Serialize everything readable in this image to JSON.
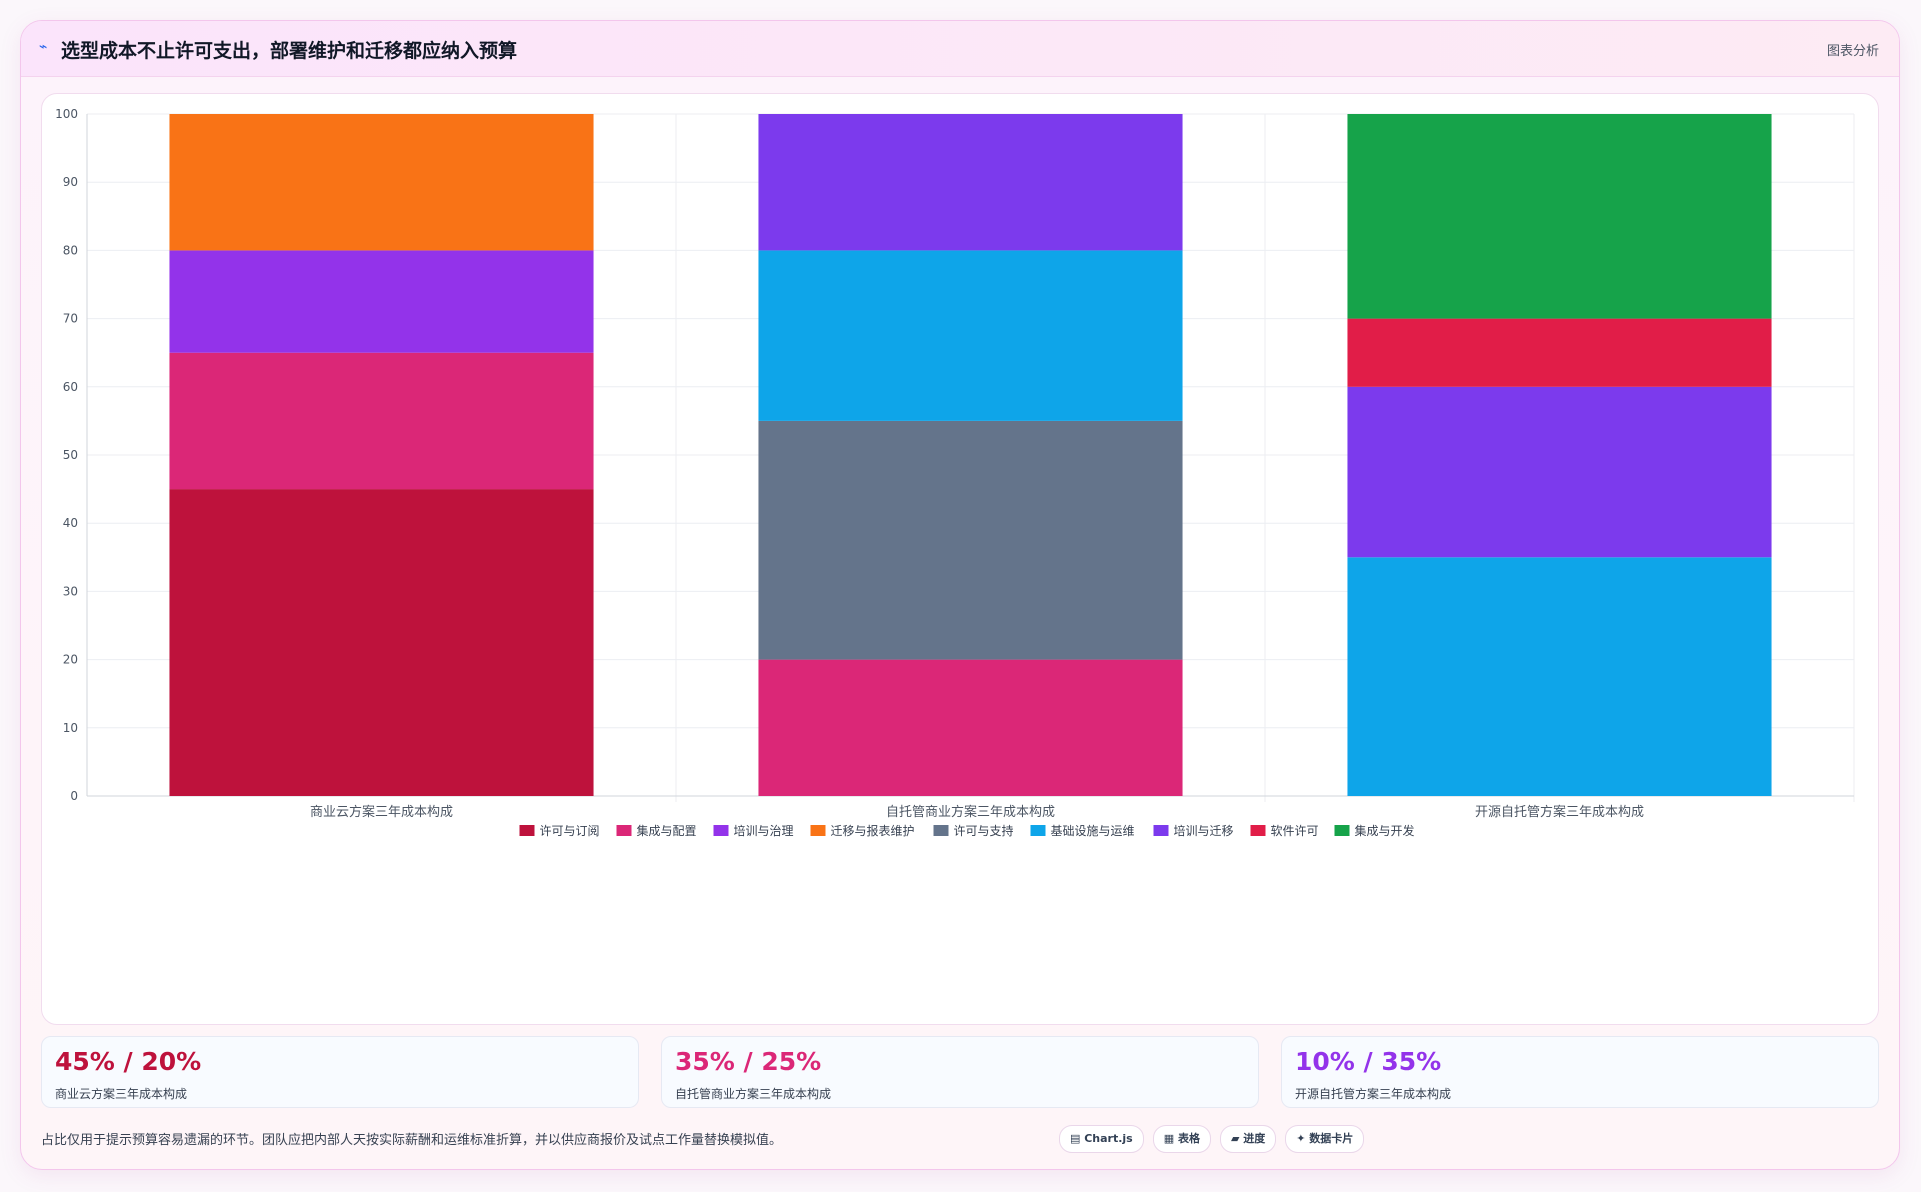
{
  "header": {
    "icon": "chart-line-icon",
    "icon_glyph": "⌁",
    "title": "选型成本不止许可支出，部署维护和迁移都应纳入预算",
    "link": "图表分析"
  },
  "chart_data": {
    "type": "bar",
    "stacked": true,
    "categories": [
      "商业云方案三年成本构成",
      "自托管商业方案三年成本构成",
      "开源自托管方案三年成本构成"
    ],
    "ylim": [
      0,
      100
    ],
    "yticks": [
      0,
      10,
      20,
      30,
      40,
      50,
      60,
      70,
      80,
      90,
      100
    ],
    "grid": true,
    "legend_position": "bottom",
    "series": [
      {
        "name": "许可与订阅",
        "color": "#be123c",
        "values": [
          45,
          0,
          0
        ]
      },
      {
        "name": "集成与配置",
        "color": "#db2777",
        "values": [
          20,
          20,
          0
        ]
      },
      {
        "name": "培训与治理",
        "color": "#9333ea",
        "values": [
          15,
          0,
          0
        ]
      },
      {
        "name": "迁移与报表维护",
        "color": "#f97316",
        "values": [
          20,
          0,
          0
        ]
      },
      {
        "name": "许可与支持",
        "color": "#64748b",
        "values": [
          0,
          35,
          0
        ]
      },
      {
        "name": "基础设施与运维",
        "color": "#0ea5e9",
        "values": [
          0,
          25,
          35
        ]
      },
      {
        "name": "培训与迁移",
        "color": "#7c3aed",
        "values": [
          0,
          20,
          25
        ]
      },
      {
        "name": "软件许可",
        "color": "#e11d48",
        "values": [
          0,
          0,
          10
        ]
      },
      {
        "name": "集成与开发",
        "color": "#16a34a",
        "values": [
          0,
          0,
          30
        ]
      }
    ]
  },
  "stats": [
    {
      "value": "45% / 20%",
      "label": "商业云方案三年成本构成",
      "color": "#be123c"
    },
    {
      "value": "35% / 25%",
      "label": "自托管商业方案三年成本构成",
      "color": "#db2777"
    },
    {
      "value": "10% / 35%",
      "label": "开源自托管方案三年成本构成",
      "color": "#9333ea"
    }
  ],
  "footnote": "占比仅用于提示预算容易遗漏的环节。团队应把内部人天按实际薪酬和运维标准折算，并以供应商报价及试点工作量替换模拟值。",
  "chips": [
    {
      "icon": "chart-icon",
      "label": "▤ Chart.js"
    },
    {
      "icon": "table-icon",
      "label": "▦ 表格"
    },
    {
      "icon": "progress-icon",
      "label": "▰ 进度"
    },
    {
      "icon": "card-icon",
      "label": "✦ 数据卡片"
    }
  ]
}
